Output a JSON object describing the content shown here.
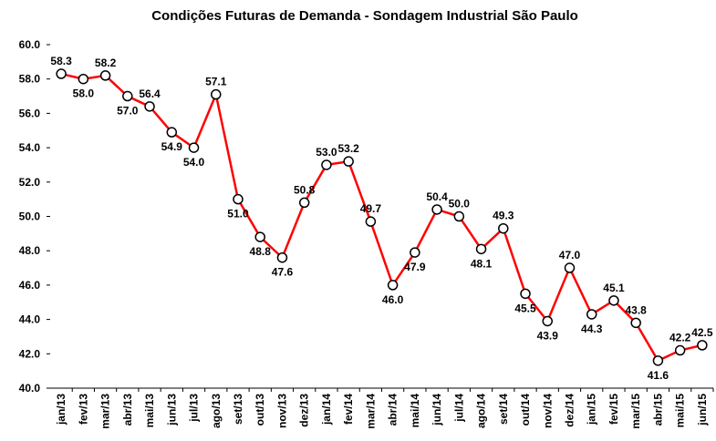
{
  "chart_data": {
    "type": "line",
    "title": "Condições Futuras de Demanda - Sondagem Industrial São Paulo",
    "categories": [
      "jan/13",
      "fev/13",
      "mar/13",
      "abr/13",
      "mai/13",
      "jun/13",
      "jul/13",
      "ago/13",
      "set/13",
      "out/13",
      "nov/13",
      "dez/13",
      "jan/14",
      "fev/14",
      "mar/14",
      "abr/14",
      "mai/14",
      "jun/14",
      "jul/14",
      "ago/14",
      "set/14",
      "out/14",
      "nov/14",
      "dez/14",
      "jan/15",
      "fev/15",
      "mar/15",
      "abr/15",
      "mai/15",
      "jun/15"
    ],
    "values": [
      58.3,
      58.0,
      58.2,
      57.0,
      56.4,
      54.9,
      54.0,
      57.1,
      51.0,
      48.8,
      47.6,
      50.8,
      53.0,
      53.2,
      49.7,
      46.0,
      47.9,
      50.4,
      50.0,
      48.1,
      49.3,
      45.5,
      43.9,
      47.0,
      44.3,
      45.1,
      43.8,
      41.6,
      42.2,
      42.5
    ],
    "value_labels": [
      "58.3",
      "58.0",
      "58.2",
      "57.0",
      "56.4",
      "54.9",
      "54.0",
      "57.1",
      "51.0",
      "48.8",
      "47.6",
      "50.8",
      "53.0",
      "53.2",
      "49.7",
      "46.0",
      "47.9",
      "50.4",
      "50.0",
      "48.1",
      "49.3",
      "45.5",
      "43.9",
      "47.0",
      "44.3",
      "45.1",
      "43.8",
      "41.6",
      "42.2",
      "42.5"
    ],
    "color": "#ff0000",
    "ylim": [
      40,
      60
    ],
    "yticks": [
      {
        "value": 40,
        "label": "40.0"
      },
      {
        "value": 42,
        "label": "42.0"
      },
      {
        "value": 44,
        "label": "44.0"
      },
      {
        "value": 46,
        "label": "46.0"
      },
      {
        "value": 48,
        "label": "48.0"
      },
      {
        "value": 50,
        "label": "50.0"
      },
      {
        "value": 52,
        "label": "52.0"
      },
      {
        "value": 54,
        "label": "54.0"
      },
      {
        "value": 56,
        "label": "56.0"
      },
      {
        "value": 58,
        "label": "58.0"
      },
      {
        "value": 60,
        "label": "60.0"
      }
    ],
    "grid": false
  }
}
